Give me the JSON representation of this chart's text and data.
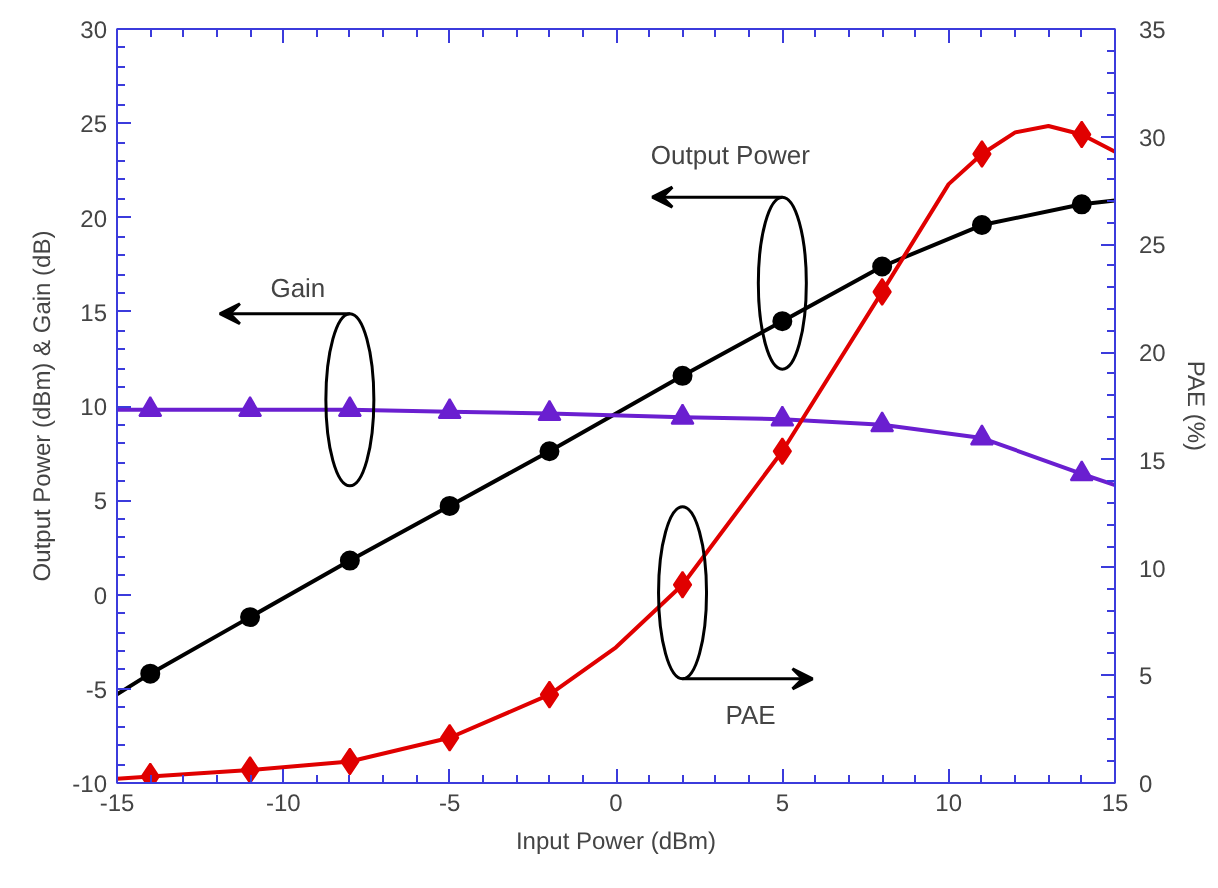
{
  "chart_data": {
    "type": "line",
    "xlabel": "Input Power (dBm)",
    "ylabel": "Output Power (dBm) & Gain (dB)",
    "y2label": "PAE (%)",
    "xlim": [
      -15,
      15
    ],
    "xticks": [
      -15,
      -10,
      -5,
      0,
      5,
      10,
      15
    ],
    "ylim": [
      -10,
      30
    ],
    "yticks": [
      -10,
      -5,
      0,
      5,
      10,
      15,
      20,
      25,
      30
    ],
    "y2lim": [
      0,
      35
    ],
    "y2ticks": [
      0,
      5,
      10,
      15,
      20,
      25,
      30,
      35
    ],
    "grid": false,
    "series": [
      {
        "marker": "none",
        "color": "#000000",
        "x": [
          -15,
          -14,
          -11,
          -8,
          -5,
          -2,
          2,
          5,
          8,
          11,
          14,
          15
        ],
        "values": [
          -5.3,
          -4.2,
          -1.2,
          1.8,
          4.7,
          7.6,
          11.6,
          14.5,
          17.4,
          19.6,
          20.7,
          20.9
        ]
      },
      {
        "type": "scatter",
        "marker": "circle",
        "color": "#000000",
        "x": [
          -14,
          -11,
          -8,
          -5,
          -2,
          2,
          5,
          8,
          11,
          14
        ],
        "values": [
          -4.2,
          -1.2,
          1.8,
          4.7,
          7.6,
          11.6,
          14.5,
          17.4,
          19.6,
          20.7
        ]
      },
      {
        "marker": "none",
        "color": "#6a1fd0",
        "x": [
          -15,
          -14,
          -11,
          -8,
          -5,
          -2,
          2,
          5,
          8,
          11,
          14,
          15
        ],
        "values": [
          9.8,
          9.8,
          9.8,
          9.8,
          9.7,
          9.6,
          9.4,
          9.3,
          9.0,
          8.3,
          6.4,
          5.8
        ]
      },
      {
        "type": "scatter",
        "marker": "triangle",
        "color": "#6a1fd0",
        "x": [
          -14,
          -11,
          -8,
          -5,
          -2,
          2,
          5,
          8,
          11,
          14
        ],
        "values": [
          9.8,
          9.8,
          9.8,
          9.7,
          9.6,
          9.4,
          9.3,
          9.0,
          8.3,
          6.4
        ]
      },
      {
        "marker": "none",
        "color": "#e00000",
        "axis": "y2",
        "x": [
          -15,
          -14,
          -11,
          -8,
          -5,
          -2,
          0,
          2,
          5,
          8,
          10,
          11,
          12,
          13,
          14,
          15
        ],
        "values": [
          0.2,
          0.3,
          0.6,
          1.0,
          2.1,
          4.1,
          6.3,
          9.2,
          15.4,
          22.8,
          27.8,
          29.2,
          30.2,
          30.5,
          30.1,
          29.3
        ]
      },
      {
        "type": "scatter",
        "marker": "diamond",
        "color": "#e00000",
        "axis": "y2",
        "x": [
          -14,
          -11,
          -8,
          -5,
          -2,
          2,
          5,
          8,
          11,
          14
        ],
        "values": [
          0.3,
          0.6,
          1.0,
          2.1,
          4.1,
          9.2,
          15.4,
          22.8,
          29.2,
          30.1
        ]
      }
    ],
    "annotations": [
      "Gain",
      "Output Power",
      "PAE"
    ]
  }
}
